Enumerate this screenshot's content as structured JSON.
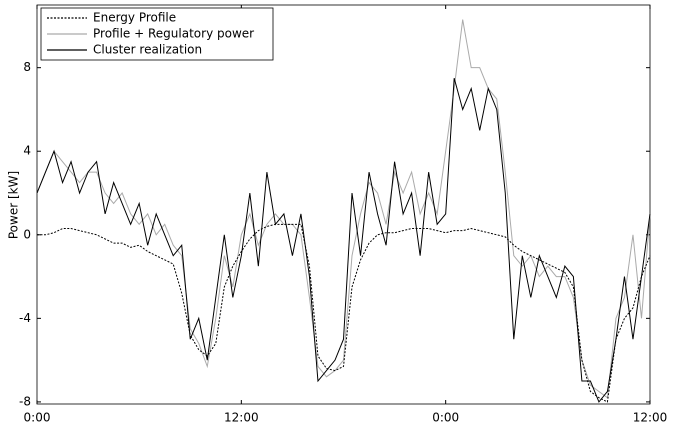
{
  "chart_data": {
    "type": "line",
    "ylabel": "Power [kW]",
    "x": [
      0,
      0.5,
      1,
      1.5,
      2,
      2.5,
      3,
      3.5,
      4,
      4.5,
      5,
      5.5,
      6,
      6.5,
      7,
      7.5,
      8,
      8.5,
      9,
      9.5,
      10,
      10.5,
      11,
      11.5,
      12,
      12.5,
      13,
      13.5,
      14,
      14.5,
      15,
      15.5,
      16,
      16.5,
      17,
      17.5,
      18,
      18.5,
      19,
      19.5,
      20,
      20.5,
      21,
      21.5,
      22,
      22.5,
      23,
      23.5,
      24,
      24.5,
      25,
      25.5,
      26,
      26.5,
      27,
      27.5,
      28,
      28.5,
      29,
      29.5,
      30,
      30.5,
      31,
      31.5,
      32,
      32.5,
      33,
      33.5,
      34,
      34.5,
      35,
      35.5,
      36
    ],
    "series": [
      {
        "name": "Energy Profile",
        "color": "#000000",
        "dash": "2,1.5",
        "values": [
          0,
          0,
          0.1,
          0.3,
          0.3,
          0.2,
          0.1,
          0,
          -0.2,
          -0.4,
          -0.4,
          -0.6,
          -0.5,
          -0.8,
          -1,
          -1.2,
          -1.4,
          -2.8,
          -4.8,
          -5.5,
          -5.8,
          -5.2,
          -2.5,
          -1.5,
          -0.8,
          -0.2,
          0.2,
          0.4,
          0.5,
          0.5,
          0.5,
          0.5,
          -1.5,
          -5.8,
          -6.4,
          -6.5,
          -6.3,
          -2.5,
          -1.2,
          -0.4,
          0,
          0.1,
          0.1,
          0.2,
          0.3,
          0.3,
          0.3,
          0.2,
          0.1,
          0.2,
          0.2,
          0.3,
          0.2,
          0.1,
          0,
          -0.1,
          -0.5,
          -0.8,
          -1,
          -1.2,
          -1.4,
          -1.6,
          -1.8,
          -2.5,
          -6,
          -7.5,
          -7.8,
          -8,
          -5,
          -4,
          -3.5,
          -2,
          -1
        ]
      },
      {
        "name": "Profile + Regulatory power",
        "color": "#aaaaaa",
        "values": [
          2,
          3,
          4,
          3.5,
          3,
          2.5,
          3,
          3,
          2,
          1.5,
          2,
          1,
          0.5,
          1,
          0,
          0.5,
          -0.5,
          -1,
          -4.5,
          -5.2,
          -6.3,
          -4,
          -1,
          -2.5,
          0,
          1,
          -0.5,
          0.5,
          1,
          0.5,
          0.5,
          0,
          -3,
          -6.3,
          -6.8,
          -6.5,
          -6,
          -1,
          1,
          2.5,
          2,
          0.5,
          3,
          2,
          3,
          1,
          2,
          1,
          4,
          7,
          10.3,
          8,
          8,
          7,
          6.5,
          3,
          -1,
          -1.5,
          -1,
          -2,
          -1.5,
          -2,
          -2,
          -3,
          -6,
          -7.2,
          -7.5,
          -7.8,
          -4,
          -3,
          0,
          -4,
          1
        ]
      },
      {
        "name": "Cluster realization",
        "color": "#000000",
        "values": [
          2,
          3,
          4,
          2.5,
          3.5,
          2,
          3,
          3.5,
          1,
          2.5,
          1.5,
          0.5,
          1.5,
          -0.5,
          1,
          0,
          -1,
          -0.5,
          -5,
          -4,
          -6,
          -3,
          0,
          -3,
          -1,
          2,
          -1.5,
          3,
          0.5,
          1,
          -1,
          1,
          -2,
          -7,
          -6.5,
          -6,
          -5,
          2,
          -1,
          3,
          1,
          -0.5,
          3.5,
          1,
          2,
          -1,
          3,
          0.5,
          1,
          7.5,
          6,
          7,
          5,
          7,
          6,
          2,
          -5,
          -1,
          -3,
          -1,
          -2,
          -3,
          -1.5,
          -2,
          -7,
          -7,
          -8,
          -7.5,
          -5,
          -2,
          -5,
          -2,
          1
        ]
      }
    ],
    "xlim": [
      0,
      36
    ],
    "xticks": [
      {
        "value": 0,
        "label": "0:00"
      },
      {
        "value": 12,
        "label": "12:00"
      },
      {
        "value": 24,
        "label": "0:00"
      },
      {
        "value": 36,
        "label": "12:00"
      }
    ],
    "ylim": [
      -8.1,
      11
    ],
    "yticks": [
      -8,
      -4,
      0,
      4,
      8
    ],
    "legend": "upper left"
  }
}
